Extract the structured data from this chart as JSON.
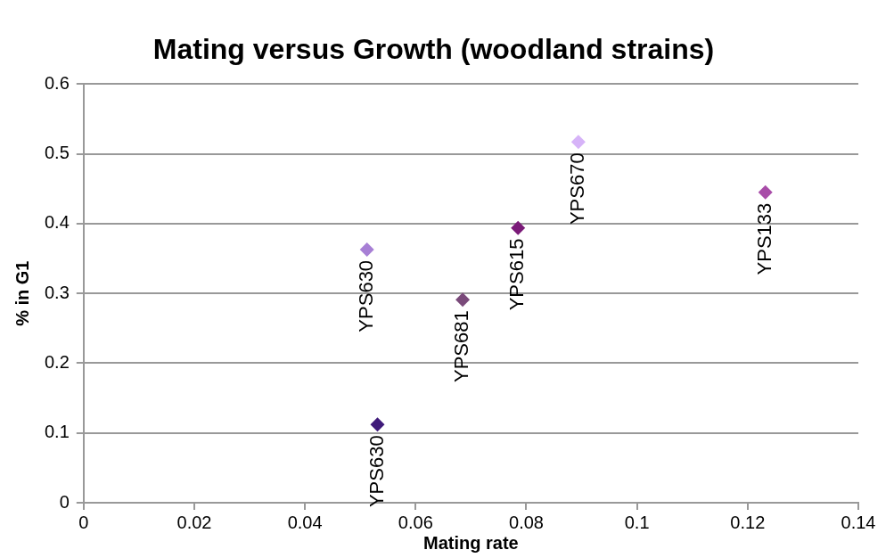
{
  "chart_data": {
    "type": "scatter",
    "title": "Mating versus Growth (woodland strains)",
    "xlabel": "Mating rate",
    "ylabel": "% in G1",
    "xlim": [
      0,
      0.14
    ],
    "xticks": [
      0,
      0.02,
      0.04,
      0.06,
      0.08,
      0.1,
      0.12,
      0.14
    ],
    "ylim": [
      0,
      0.6
    ],
    "yticks": [
      0,
      0.1,
      0.2,
      0.3,
      0.4,
      0.5,
      0.6
    ],
    "grid": "y",
    "legend": false,
    "marker": "diamond",
    "series": [
      {
        "name": "YPS630",
        "color": "#a77fd5",
        "x": [
          0.0512
        ],
        "values": [
          0.363
        ]
      },
      {
        "name": "YPS630",
        "color": "#3f1a7a",
        "x": [
          0.0531
        ],
        "values": [
          0.112
        ]
      },
      {
        "name": "YPS681",
        "color": "#7a4a7a",
        "x": [
          0.0685
        ],
        "values": [
          0.291
        ]
      },
      {
        "name": "YPS615",
        "color": "#7a1a78",
        "x": [
          0.0785
        ],
        "values": [
          0.394
        ]
      },
      {
        "name": "YPS670",
        "color": "#d6b3f8",
        "x": [
          0.0894
        ],
        "values": [
          0.517
        ]
      },
      {
        "name": "YPS133",
        "color": "#a84ca8",
        "x": [
          0.1232
        ],
        "values": [
          0.445
        ]
      }
    ]
  }
}
